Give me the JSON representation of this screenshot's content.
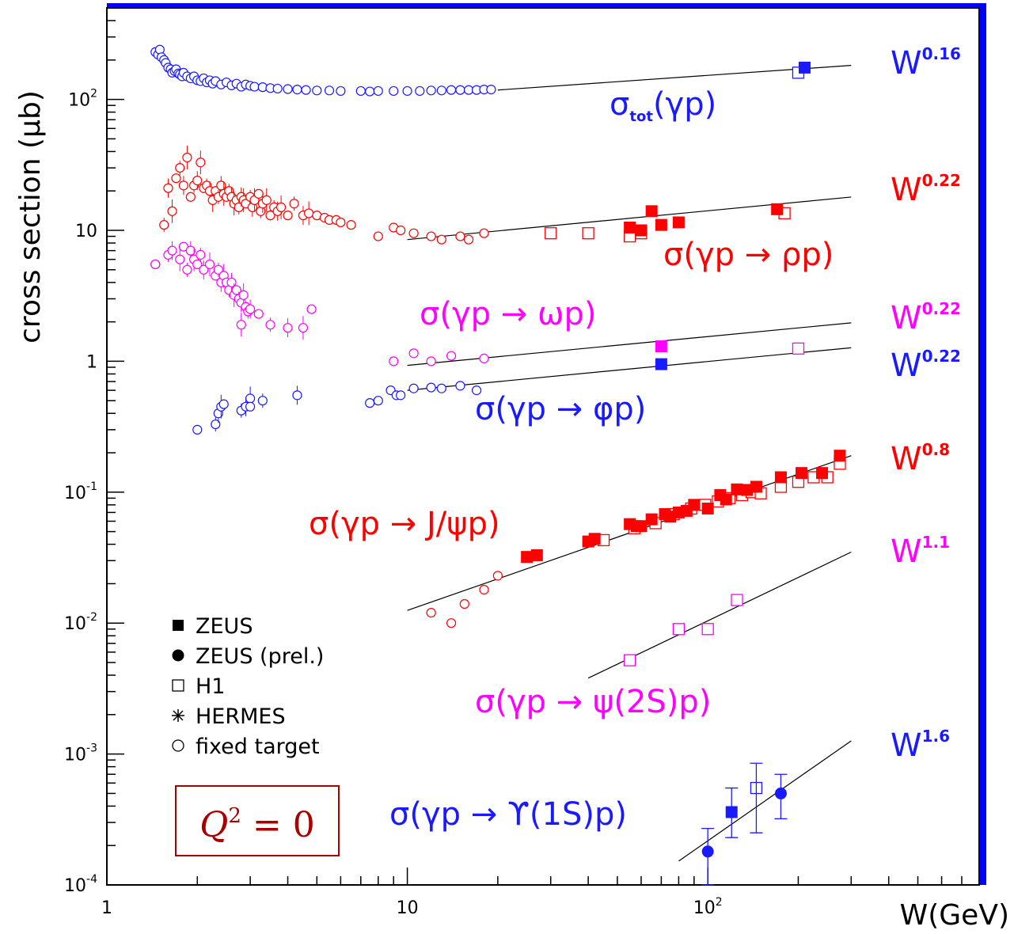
{
  "chart_data": {
    "type": "scatter",
    "title": "",
    "xlabel": "W(GeV)",
    "ylabel": "cross section (μb)",
    "x_scale": "log",
    "y_scale": "log",
    "xlim": [
      1,
      800
    ],
    "ylim": [
      0.0001,
      500
    ],
    "x_ticks": [
      {
        "value": 1,
        "label": "1"
      },
      {
        "value": 10,
        "label": "10"
      },
      {
        "value": 100,
        "label": "10",
        "sup": "2"
      }
    ],
    "y_ticks": [
      {
        "value": 0.0001,
        "label": "10",
        "sup": "-4"
      },
      {
        "value": 0.001,
        "label": "10",
        "sup": "-3"
      },
      {
        "value": 0.01,
        "label": "10",
        "sup": "-2"
      },
      {
        "value": 0.1,
        "label": "10",
        "sup": "-1"
      },
      {
        "value": 1,
        "label": "1",
        "sup": ""
      },
      {
        "value": 10,
        "label": "10",
        "sup": ""
      },
      {
        "value": 100,
        "label": "10",
        "sup": "2"
      }
    ],
    "grid": false,
    "colors": {
      "blue": "#1a1aff",
      "red": "#ff0000",
      "magenta": "#ff00ff",
      "dark_red": "#a80000",
      "frame_accent": "#0000ff"
    },
    "legend": {
      "position": "bottom-left",
      "entries": [
        {
          "marker": "filled-square",
          "label": "ZEUS"
        },
        {
          "marker": "filled-circle",
          "label": "ZEUS (prel.)"
        },
        {
          "marker": "open-square",
          "label": "H1"
        },
        {
          "marker": "star",
          "label": "HERMES"
        },
        {
          "marker": "open-circle",
          "label": "fixed target"
        }
      ]
    },
    "annotation": {
      "text": "Q",
      "sup": "2",
      "rest": " = 0",
      "color": "#a80000"
    },
    "processes": [
      {
        "label": "σ(γp)",
        "label_sub": "tot",
        "fit_label": "W",
        "fit_exponent": "0.16",
        "color": "#1a1aff",
        "fit": {
          "w0": 20,
          "sigma0": 118,
          "exponent": 0.16,
          "x_range": [
            20,
            300
          ]
        },
        "fixed_target": [
          [
            1.45,
            230
          ],
          [
            1.48,
            220
          ],
          [
            1.5,
            240
          ],
          [
            1.52,
            210
          ],
          [
            1.55,
            200
          ],
          [
            1.57,
            190
          ],
          [
            1.6,
            175
          ],
          [
            1.63,
            170
          ],
          [
            1.65,
            160
          ],
          [
            1.68,
            165
          ],
          [
            1.7,
            170
          ],
          [
            1.73,
            158
          ],
          [
            1.75,
            155
          ],
          [
            1.78,
            150
          ],
          [
            1.8,
            160
          ],
          [
            1.85,
            150
          ],
          [
            1.9,
            145
          ],
          [
            1.95,
            150
          ],
          [
            2.0,
            140
          ],
          [
            2.05,
            138
          ],
          [
            2.1,
            145
          ],
          [
            2.15,
            135
          ],
          [
            2.2,
            140
          ],
          [
            2.25,
            132
          ],
          [
            2.3,
            138
          ],
          [
            2.4,
            130
          ],
          [
            2.5,
            135
          ],
          [
            2.6,
            128
          ],
          [
            2.7,
            132
          ],
          [
            2.8,
            125
          ],
          [
            2.9,
            130
          ],
          [
            3.0,
            127
          ],
          [
            3.1,
            125
          ],
          [
            3.3,
            124
          ],
          [
            3.5,
            122
          ],
          [
            3.7,
            121
          ],
          [
            4.0,
            120
          ],
          [
            4.3,
            119
          ],
          [
            4.6,
            118
          ],
          [
            5.0,
            117
          ],
          [
            5.5,
            117
          ],
          [
            6.0,
            116
          ],
          [
            7.0,
            116
          ],
          [
            7.5,
            115
          ],
          [
            8.0,
            116
          ],
          [
            9.0,
            116
          ],
          [
            10,
            116
          ],
          [
            11,
            116
          ],
          [
            12,
            117
          ],
          [
            13,
            117
          ],
          [
            14,
            118
          ],
          [
            15,
            118
          ],
          [
            16,
            118
          ],
          [
            17,
            118
          ],
          [
            18,
            119
          ],
          [
            19,
            119
          ]
        ],
        "zeus": [
          [
            210,
            175
          ]
        ],
        "h1": [
          [
            200,
            160
          ]
        ]
      },
      {
        "label": "σ(γp → ρp)",
        "fit_label": "W",
        "fit_exponent": "0.22",
        "color": "#ff0000",
        "fit": {
          "w0": 10,
          "sigma0": 8.5,
          "exponent": 0.22,
          "x_range": [
            10,
            300
          ]
        },
        "fixed_target": [
          [
            1.45,
            5.5
          ],
          [
            1.55,
            11
          ],
          [
            1.6,
            21
          ],
          [
            1.65,
            14
          ],
          [
            1.7,
            25
          ],
          [
            1.75,
            30
          ],
          [
            1.8,
            22
          ],
          [
            1.85,
            36
          ],
          [
            1.9,
            18
          ],
          [
            1.95,
            22
          ],
          [
            2.0,
            24
          ],
          [
            2.05,
            33
          ],
          [
            2.1,
            21
          ],
          [
            2.15,
            22
          ],
          [
            2.2,
            20
          ],
          [
            2.25,
            17
          ],
          [
            2.3,
            20
          ],
          [
            2.35,
            18
          ],
          [
            2.4,
            22
          ],
          [
            2.45,
            19
          ],
          [
            2.5,
            18
          ],
          [
            2.55,
            20
          ],
          [
            2.6,
            18
          ],
          [
            2.65,
            16
          ],
          [
            2.7,
            17
          ],
          [
            2.75,
            15
          ],
          [
            2.8,
            18
          ],
          [
            2.85,
            17
          ],
          [
            2.9,
            16
          ],
          [
            3.0,
            18
          ],
          [
            3.05,
            15
          ],
          [
            3.1,
            17
          ],
          [
            3.2,
            19
          ],
          [
            3.25,
            14
          ],
          [
            3.3,
            16
          ],
          [
            3.4,
            17
          ],
          [
            3.5,
            13
          ],
          [
            3.6,
            15
          ],
          [
            3.7,
            14
          ],
          [
            3.8,
            15
          ],
          [
            4.0,
            13
          ],
          [
            4.2,
            16
          ],
          [
            4.5,
            13
          ],
          [
            4.7,
            13.5
          ],
          [
            5.0,
            13
          ],
          [
            5.3,
            12.5
          ],
          [
            5.5,
            12
          ],
          [
            5.8,
            12
          ],
          [
            6.0,
            11.5
          ],
          [
            6.5,
            11
          ],
          [
            8.0,
            9
          ],
          [
            9.0,
            10.5
          ],
          [
            9.5,
            10
          ],
          [
            10.5,
            9.5
          ],
          [
            12,
            9
          ],
          [
            13,
            8.5
          ],
          [
            15,
            9
          ],
          [
            16,
            8.5
          ],
          [
            18,
            9.5
          ]
        ],
        "zeus": [
          [
            55,
            10.5
          ],
          [
            60,
            10
          ],
          [
            65,
            14
          ],
          [
            70,
            11
          ],
          [
            80,
            11.5
          ],
          [
            170,
            14.5
          ]
        ],
        "h1": [
          [
            30,
            9.5
          ],
          [
            40,
            9.5
          ],
          [
            55,
            9
          ],
          [
            60,
            9.5
          ],
          [
            180,
            13.5
          ]
        ]
      },
      {
        "label": "σ(γp → ωp)",
        "fit_label": "W",
        "fit_exponent": "0.22",
        "color": "#ff00ff",
        "fit": {
          "w0": 10,
          "sigma0": 0.93,
          "exponent": 0.22,
          "x_range": [
            10,
            300
          ]
        },
        "fixed_target": [
          [
            1.45,
            5.5
          ],
          [
            1.6,
            6.5
          ],
          [
            1.65,
            7
          ],
          [
            1.75,
            6
          ],
          [
            1.8,
            7.5
          ],
          [
            1.85,
            5
          ],
          [
            1.9,
            7
          ],
          [
            1.95,
            6
          ],
          [
            2.0,
            5.5
          ],
          [
            2.05,
            6.5
          ],
          [
            2.1,
            5
          ],
          [
            2.2,
            5.5
          ],
          [
            2.3,
            4.5
          ],
          [
            2.35,
            5
          ],
          [
            2.4,
            4
          ],
          [
            2.45,
            4.5
          ],
          [
            2.5,
            4
          ],
          [
            2.55,
            3.5
          ],
          [
            2.6,
            4
          ],
          [
            2.65,
            3.2
          ],
          [
            2.7,
            3.5
          ],
          [
            2.75,
            3
          ],
          [
            2.8,
            2.8
          ],
          [
            2.85,
            3.2
          ],
          [
            2.9,
            2.6
          ],
          [
            2.95,
            2.4
          ],
          [
            3.0,
            2.5
          ],
          [
            2.8,
            1.9
          ],
          [
            3.2,
            2.3
          ],
          [
            3.5,
            1.9
          ],
          [
            4.0,
            1.8
          ],
          [
            4.5,
            1.8
          ],
          [
            4.8,
            2.5
          ],
          [
            9.0,
            1.0
          ],
          [
            10.5,
            1.15
          ],
          [
            12,
            1.0
          ],
          [
            14,
            1.1
          ],
          [
            18,
            1.05
          ]
        ],
        "zeus": [
          [
            70,
            1.3
          ]
        ],
        "h1": [
          [
            200,
            1.25
          ]
        ]
      },
      {
        "label": "σ(γp → φp)",
        "fit_label": "W",
        "fit_exponent": "0.22",
        "color": "#1a1aff",
        "fit": {
          "w0": 10,
          "sigma0": 0.6,
          "exponent": 0.22,
          "x_range": [
            10,
            300
          ]
        },
        "fixed_target": [
          [
            2.0,
            0.3
          ],
          [
            2.3,
            0.33
          ],
          [
            2.35,
            0.4
          ],
          [
            2.4,
            0.45
          ],
          [
            2.45,
            0.47
          ],
          [
            2.8,
            0.42
          ],
          [
            2.9,
            0.45
          ],
          [
            3.0,
            0.52
          ],
          [
            3.0,
            0.45
          ],
          [
            3.3,
            0.5
          ],
          [
            4.3,
            0.55
          ],
          [
            7.5,
            0.48
          ],
          [
            8.0,
            0.5
          ],
          [
            8.8,
            0.6
          ],
          [
            9.2,
            0.55
          ],
          [
            9.5,
            0.55
          ],
          [
            10.5,
            0.62
          ],
          [
            12,
            0.63
          ],
          [
            13,
            0.62
          ],
          [
            15,
            0.65
          ],
          [
            17,
            0.6
          ]
        ],
        "zeus": [
          [
            70,
            0.95
          ]
        ],
        "h1": []
      },
      {
        "label": "σ(γp → J/ψp)",
        "fit_label": "W",
        "fit_exponent": "0.8",
        "color": "#ff0000",
        "fit": {
          "w0": 10,
          "sigma0": 0.0125,
          "exponent": 0.8,
          "x_range": [
            10,
            300
          ]
        },
        "fixed_target": [
          [
            12,
            0.012
          ],
          [
            14,
            0.01
          ],
          [
            15.5,
            0.014
          ],
          [
            18,
            0.018
          ],
          [
            20,
            0.023
          ]
        ],
        "zeus": [
          [
            25,
            0.032
          ],
          [
            27,
            0.033
          ],
          [
            40,
            0.042
          ],
          [
            42,
            0.044
          ],
          [
            55,
            0.057
          ],
          [
            58,
            0.055
          ],
          [
            60,
            0.055
          ],
          [
            65,
            0.062
          ],
          [
            72,
            0.068
          ],
          [
            75,
            0.065
          ],
          [
            80,
            0.07
          ],
          [
            85,
            0.072
          ],
          [
            90,
            0.08
          ],
          [
            100,
            0.075
          ],
          [
            110,
            0.095
          ],
          [
            115,
            0.088
          ],
          [
            125,
            0.105
          ],
          [
            135,
            0.104
          ],
          [
            145,
            0.11
          ],
          [
            175,
            0.13
          ],
          [
            205,
            0.14
          ],
          [
            240,
            0.14
          ],
          [
            275,
            0.19
          ]
        ],
        "h1": [
          [
            45,
            0.043
          ],
          [
            57,
            0.053
          ],
          [
            67,
            0.058
          ],
          [
            77,
            0.068
          ],
          [
            88,
            0.075
          ],
          [
            98,
            0.08
          ],
          [
            108,
            0.085
          ],
          [
            118,
            0.09
          ],
          [
            130,
            0.095
          ],
          [
            140,
            0.1
          ],
          [
            150,
            0.098
          ],
          [
            175,
            0.11
          ],
          [
            200,
            0.12
          ],
          [
            225,
            0.13
          ],
          [
            250,
            0.13
          ],
          [
            275,
            0.165
          ]
        ]
      },
      {
        "label": "σ(γp → ψ(2S)p)",
        "fit_label": "W",
        "fit_exponent": "1.1",
        "color": "#ff00ff",
        "fit": {
          "w0": 40,
          "sigma0": 0.0038,
          "exponent": 1.1,
          "x_range": [
            40,
            300
          ]
        },
        "fixed_target": [],
        "zeus": [],
        "h1": [
          [
            55,
            0.0052
          ],
          [
            80,
            0.009
          ],
          [
            100,
            0.009
          ],
          [
            125,
            0.015
          ]
        ]
      },
      {
        "label": "σ(γp → ϒ(1S)p)",
        "fit_label": "W",
        "fit_exponent": "1.6",
        "color": "#1a1aff",
        "fit": {
          "w0": 80,
          "sigma0": 0.000152,
          "exponent": 1.6,
          "x_range": [
            80,
            300
          ]
        },
        "fixed_target": [],
        "zeus": [
          [
            120,
            0.00036
          ]
        ],
        "zeus_prel": [
          [
            100,
            0.00018
          ],
          [
            175,
            0.0005
          ]
        ],
        "h1": [
          [
            145,
            0.00055
          ]
        ],
        "errors": [
          {
            "x": 100,
            "y": 0.00018,
            "lo": 0.0001,
            "hi": 0.00027
          },
          {
            "x": 120,
            "y": 0.00036,
            "lo": 0.00023,
            "hi": 0.00055
          },
          {
            "x": 145,
            "y": 0.00055,
            "lo": 0.00025,
            "hi": 0.00085
          },
          {
            "x": 175,
            "y": 0.0005,
            "lo": 0.00032,
            "hi": 0.0007
          }
        ]
      }
    ]
  }
}
